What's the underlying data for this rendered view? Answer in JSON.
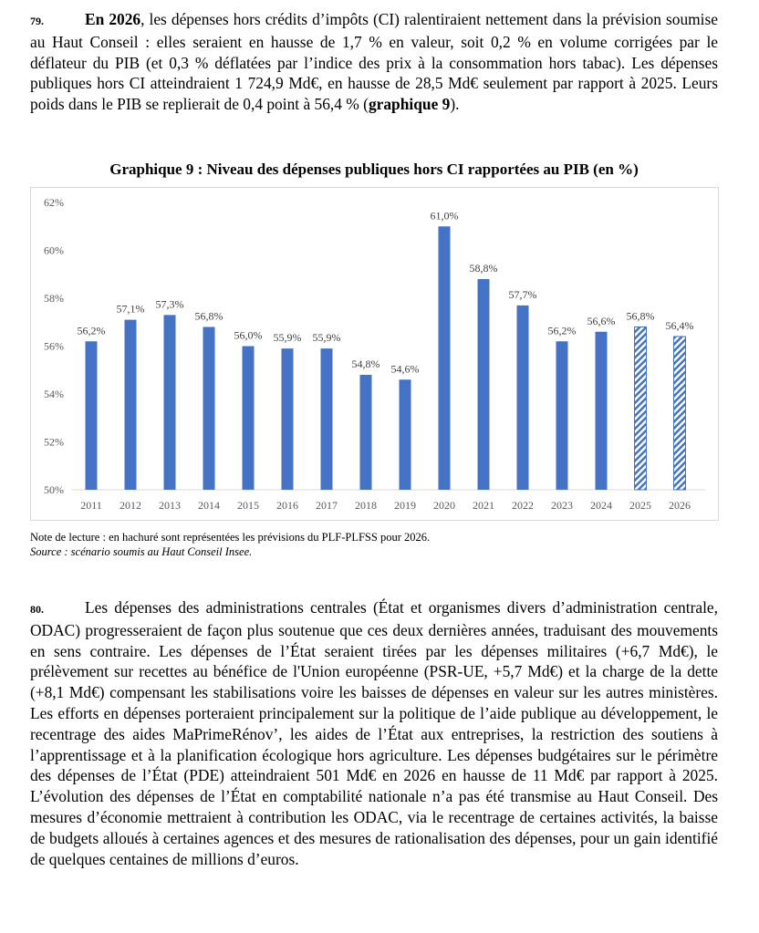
{
  "paragraphs": [
    {
      "number": "79.",
      "runs": [
        {
          "text": "En 2026",
          "bold": true
        },
        {
          "text": ", les dépenses hors crédits d’impôts (CI) ralentiraient nettement dans la prévision soumise au Haut Conseil : elles seraient en hausse de 1,7 % en valeur, soit 0,2 % en volume corrigées par le déflateur du PIB (et 0,3 % déflatées par l’indice des prix à la consommation hors tabac). Les dépenses publiques hors CI atteindraient 1 724,9 Md€, en hausse de 28,5 Md€ seulement par rapport à 2025. Leurs poids dans le PIB se replierait de 0,4 point à 56,4 % (",
          "bold": false
        },
        {
          "text": "graphique 9",
          "bold": true
        },
        {
          "text": ").",
          "bold": false
        }
      ]
    },
    {
      "number": "80.",
      "runs": [
        {
          "text": "Les dépenses des administrations centrales (État et organismes divers d’administration centrale, ODAC) progresseraient de façon plus soutenue que ces deux dernières années, traduisant des mouvements en sens contraire. Les dépenses de l’État seraient tirées par les dépenses militaires (+6,7 Md€), le prélèvement sur recettes au bénéfice de l'Union européenne (PSR-UE, +5,7 Md€) et la charge de la dette (+8,1 Md€) compensant les stabilisations voire les baisses de dépenses en valeur sur les autres ministères. Les efforts en dépenses porteraient principalement sur la politique de l’aide publique au développement, le recentrage des aides MaPrimeRénov’, les aides de l’État aux entreprises, la restriction des soutiens à l’apprentissage et à la planification écologique hors agriculture. Les dépenses budgétaires sur le périmètre des dépenses de l’État (PDE) atteindraient 501 Md€ en 2026 en hausse de 11 Md€ par rapport à 2025. L’évolution des dépenses de l’État en comptabilité nationale n’a pas été transmise au Haut Conseil. Des mesures d’économie mettraient à contribution les ODAC, via le recentrage de certaines activités, la baisse de budgets alloués à certaines agences et des mesures de rationalisation des dépenses, pour un gain identifié de quelques centaines de millions d’euros.",
          "bold": false
        }
      ]
    }
  ],
  "chart_data": {
    "type": "bar",
    "title": "Graphique 9 : Niveau des dépenses publiques hors CI rapportées au PIB (en %)",
    "categories": [
      "2011",
      "2012",
      "2013",
      "2014",
      "2015",
      "2016",
      "2017",
      "2018",
      "2019",
      "2020",
      "2021",
      "2022",
      "2023",
      "2024",
      "2025",
      "2026"
    ],
    "values": [
      56.2,
      57.1,
      57.3,
      56.8,
      56.0,
      55.9,
      55.9,
      54.8,
      54.6,
      61.0,
      58.8,
      57.7,
      56.2,
      56.6,
      56.8,
      56.4
    ],
    "value_labels": [
      "56,2%",
      "57,1%",
      "57,3%",
      "56,8%",
      "56,0%",
      "55,9%",
      "55,9%",
      "54,8%",
      "54,6%",
      "61,0%",
      "58,8%",
      "57,7%",
      "56,2%",
      "56,6%",
      "56,8%",
      "56,4%"
    ],
    "hatched": [
      false,
      false,
      false,
      false,
      false,
      false,
      false,
      false,
      false,
      false,
      false,
      false,
      false,
      false,
      true,
      true
    ],
    "color": "#4472c4",
    "ylim": [
      50,
      62
    ],
    "yticks": [
      {
        "value": 50,
        "label": "50%"
      },
      {
        "value": 52,
        "label": "52%"
      },
      {
        "value": 54,
        "label": "54%"
      },
      {
        "value": 56,
        "label": "56%"
      },
      {
        "value": 58,
        "label": "58%"
      },
      {
        "value": 60,
        "label": "60%"
      },
      {
        "value": 62,
        "label": "62%"
      }
    ],
    "grid": false
  },
  "note": "Note de lecture : en hachuré sont représentées les prévisions du PLF-PLFSS pour 2026.",
  "source": "Source : scénario soumis au Haut Conseil Insee."
}
